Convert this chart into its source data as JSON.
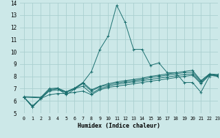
{
  "title": "",
  "xlabel": "Humidex (Indice chaleur)",
  "xlim": [
    -0.5,
    23
  ],
  "ylim": [
    5,
    14
  ],
  "yticks": [
    5,
    6,
    7,
    8,
    9,
    10,
    11,
    12,
    13,
    14
  ],
  "xticks": [
    0,
    1,
    2,
    3,
    4,
    5,
    6,
    7,
    8,
    9,
    10,
    11,
    12,
    13,
    14,
    15,
    16,
    17,
    18,
    19,
    20,
    21,
    22,
    23
  ],
  "background_color": "#cce8e8",
  "grid_color": "#aacfcf",
  "line_color": "#1a6e6e",
  "lines": [
    {
      "x": [
        0,
        1,
        2,
        3,
        4,
        5,
        6,
        7,
        8,
        9,
        10,
        11,
        12,
        13,
        14,
        15,
        16,
        17,
        18,
        19,
        20,
        21,
        22
      ],
      "y": [
        6.3,
        5.5,
        6.2,
        6.9,
        7.0,
        6.5,
        6.95,
        7.5,
        8.4,
        10.2,
        11.3,
        13.8,
        12.4,
        10.2,
        10.2,
        8.9,
        9.1,
        8.3,
        8.3,
        7.5,
        7.5,
        6.7,
        8.0
      ]
    },
    {
      "x": [
        0,
        1,
        2,
        3,
        4,
        5,
        6,
        7,
        8,
        9,
        10,
        11,
        12,
        13,
        14,
        15,
        16,
        17,
        18,
        19,
        20,
        21,
        22,
        23
      ],
      "y": [
        6.3,
        5.5,
        6.2,
        6.5,
        6.6,
        6.6,
        6.7,
        6.8,
        6.5,
        6.9,
        7.1,
        7.2,
        7.3,
        7.4,
        7.5,
        7.6,
        7.7,
        7.8,
        7.9,
        8.0,
        8.1,
        7.4,
        8.1,
        8.0
      ]
    },
    {
      "x": [
        0,
        1,
        2,
        3,
        4,
        5,
        6,
        7,
        8,
        9,
        10,
        11,
        12,
        13,
        14,
        15,
        16,
        17,
        18,
        19,
        20,
        21,
        22,
        23
      ],
      "y": [
        6.3,
        5.6,
        6.2,
        6.8,
        6.9,
        6.7,
        7.0,
        7.2,
        6.6,
        7.0,
        7.2,
        7.35,
        7.45,
        7.55,
        7.65,
        7.75,
        7.85,
        7.95,
        8.05,
        8.15,
        8.2,
        7.5,
        8.1,
        8.05
      ]
    },
    {
      "x": [
        0,
        2,
        3,
        4,
        5,
        6,
        7,
        8,
        9,
        10,
        11,
        12,
        13,
        14,
        15,
        16,
        17,
        18,
        19,
        20,
        21,
        22,
        23
      ],
      "y": [
        6.3,
        6.25,
        6.9,
        7.0,
        6.7,
        7.0,
        7.4,
        6.8,
        7.15,
        7.3,
        7.45,
        7.55,
        7.65,
        7.75,
        7.9,
        8.0,
        8.1,
        8.2,
        8.3,
        8.35,
        7.6,
        8.15,
        8.1
      ]
    },
    {
      "x": [
        0,
        2,
        3,
        4,
        5,
        6,
        7,
        8,
        9,
        10,
        11,
        12,
        13,
        14,
        15,
        16,
        17,
        18,
        19,
        20,
        21,
        22,
        23
      ],
      "y": [
        6.35,
        6.3,
        7.0,
        7.05,
        6.75,
        7.05,
        7.5,
        6.9,
        7.2,
        7.4,
        7.55,
        7.65,
        7.75,
        7.85,
        8.0,
        8.1,
        8.2,
        8.3,
        8.4,
        8.5,
        7.65,
        8.2,
        8.15
      ]
    }
  ]
}
